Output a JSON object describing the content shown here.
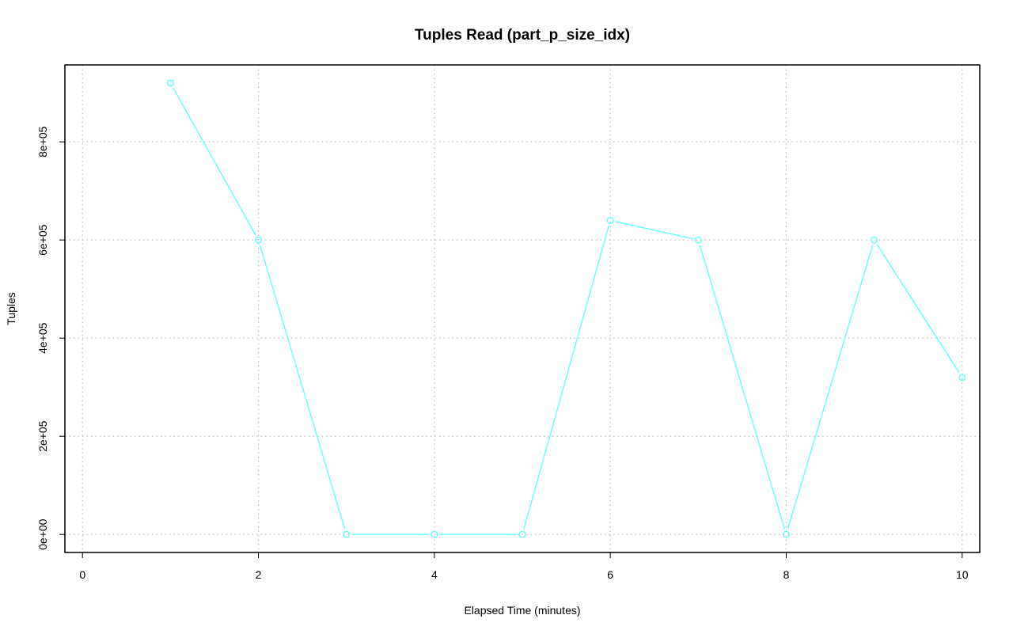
{
  "chart_data": {
    "type": "line",
    "title": "Tuples Read (part_p_size_idx)",
    "xlabel": "Elapsed Time (minutes)",
    "ylabel": "Tuples",
    "x": [
      1,
      2,
      3,
      4,
      5,
      6,
      7,
      8,
      9,
      10
    ],
    "series": [
      {
        "values": [
          920000,
          600000,
          0,
          0,
          0,
          640000,
          600000,
          0,
          600000,
          320000
        ],
        "color": "#66ffff"
      }
    ],
    "xlim": [
      -0.2,
      10.2
    ],
    "ylim": [
      -36800,
      956800
    ],
    "xticks": [
      0,
      2,
      4,
      6,
      8,
      10
    ],
    "xtick_labels": [
      "0",
      "2",
      "4",
      "6",
      "8",
      "10"
    ],
    "yticks": [
      0,
      200000,
      400000,
      600000,
      800000
    ],
    "ytick_labels": [
      "0e+00",
      "2e+05",
      "4e+05",
      "6e+05",
      "8e+05"
    ],
    "xgrid": [
      0,
      2,
      4,
      6,
      8,
      10
    ],
    "ygrid": [
      0,
      200000,
      400000,
      600000,
      800000
    ],
    "grid": true,
    "marker": "open-circle"
  }
}
